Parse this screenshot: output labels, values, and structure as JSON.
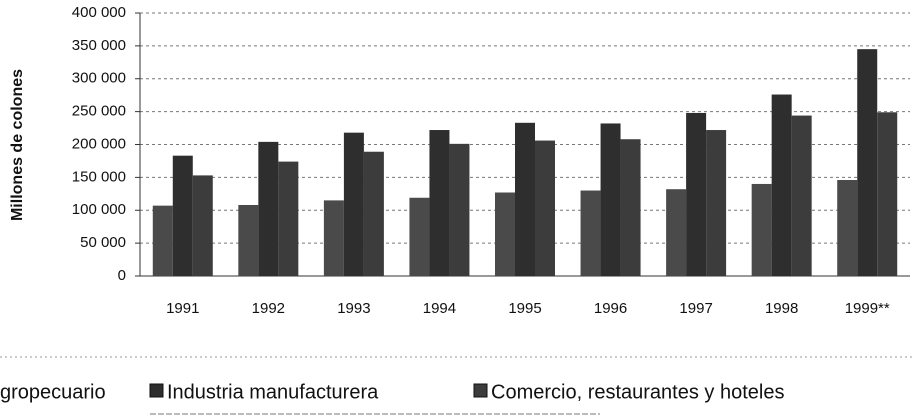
{
  "chart_data": {
    "type": "bar",
    "y_axis_label": "Millones de colones",
    "categories": [
      "1991",
      "1992",
      "1993",
      "1994",
      "1995",
      "1996",
      "1997",
      "1998",
      "1999**"
    ],
    "series": [
      {
        "name": "gropecuario",
        "color": "#4a4a4a",
        "values": [
          107000,
          108000,
          115000,
          119000,
          127000,
          130000,
          132000,
          140000,
          146000
        ]
      },
      {
        "name": "Industria manufacturera",
        "color": "#2e2e2e",
        "values": [
          183000,
          204000,
          218000,
          222000,
          233000,
          232000,
          248000,
          276000,
          345000
        ]
      },
      {
        "name": "Comercio, restaurantes y hoteles",
        "color": "#3c3c3c",
        "values": [
          153000,
          174000,
          189000,
          201000,
          206000,
          208000,
          222000,
          244000,
          249000
        ]
      }
    ],
    "ylim": [
      0,
      400000
    ],
    "yticks": [
      0,
      {
        "value": 50000,
        "label": "50 000"
      },
      {
        "value": 100000,
        "label": "100 000"
      },
      {
        "value": 150000,
        "label": "150 000"
      },
      {
        "value": 200000,
        "label": "200 000"
      },
      {
        "value": 250000,
        "label": "250 000"
      },
      {
        "value": 300000,
        "label": "300 000"
      },
      {
        "value": 350000,
        "label": "350 000"
      },
      {
        "value": 400000,
        "label": "400 000"
      }
    ],
    "grid": true
  }
}
